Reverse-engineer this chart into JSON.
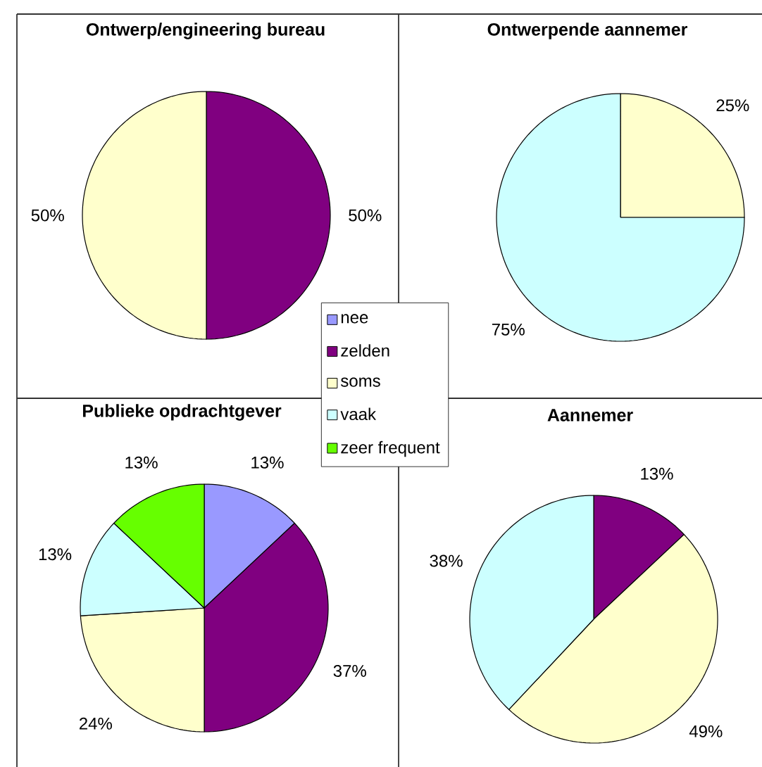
{
  "chart_data": [
    {
      "type": "pie",
      "title": "Ontwerp/engineering bureau",
      "categories": [
        null,
        null,
        null,
        null,
        null
      ],
      "values": [
        null,
        50,
        50,
        null,
        null
      ],
      "colors": [
        "#9999ff",
        "#800080",
        "#ffffcc",
        "#ccffff",
        "#66ff00"
      ],
      "value_labels": [
        null,
        "50%",
        "50%",
        null,
        null
      ]
    },
    {
      "type": "pie",
      "title": "Ontwerpende aannemer",
      "categories": [
        null,
        null,
        null,
        null,
        null
      ],
      "values": [
        null,
        null,
        25,
        75,
        null
      ],
      "colors": [
        "#9999ff",
        "#800080",
        "#ffffcc",
        "#ccffff",
        "#66ff00"
      ],
      "value_labels": [
        null,
        null,
        "25%",
        "75%",
        null
      ]
    },
    {
      "type": "pie",
      "title": "Publieke opdrachtgever",
      "categories": [
        "nee",
        "zelden",
        "soms",
        "vaak",
        "zeer frequent"
      ],
      "values": [
        13,
        37,
        24,
        13,
        13
      ],
      "colors": [
        "#9999ff",
        "#800080",
        "#ffffcc",
        "#ccffff",
        "#66ff00"
      ],
      "value_labels": [
        "13%",
        "37%",
        "24%",
        "13%",
        "13%"
      ],
      "legend": "top right"
    },
    {
      "type": "pie",
      "title": "Aannemer",
      "categories": [
        null,
        null,
        null,
        null,
        null
      ],
      "values": [
        null,
        13,
        49,
        38,
        null
      ],
      "colors": [
        "#9999ff",
        "#800080",
        "#ffffcc",
        "#ccffff",
        "#66ff00"
      ],
      "value_labels": [
        null,
        "13%",
        "49%",
        "38%",
        null
      ]
    }
  ]
}
